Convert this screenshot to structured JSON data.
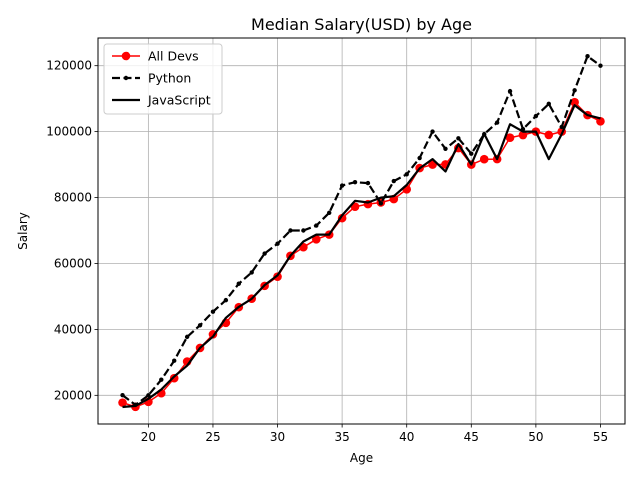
{
  "chart_data": {
    "type": "line",
    "title": "Median Salary(USD) by Age",
    "xlabel": "Age",
    "ylabel": "Salary",
    "xlim": [
      16.1,
      56.9
    ],
    "ylim": [
      11300,
      128400
    ],
    "xticks": [
      20,
      25,
      30,
      35,
      40,
      45,
      50,
      55
    ],
    "yticks": [
      20000,
      40000,
      60000,
      80000,
      100000,
      120000
    ],
    "grid": true,
    "legend_position": "top-left",
    "x": [
      18,
      19,
      20,
      21,
      22,
      23,
      24,
      25,
      26,
      27,
      28,
      29,
      30,
      31,
      32,
      33,
      34,
      35,
      36,
      37,
      38,
      39,
      40,
      41,
      42,
      43,
      44,
      45,
      46,
      47,
      48,
      49,
      50,
      51,
      52,
      53,
      54,
      55
    ],
    "series": [
      {
        "name": "All Devs",
        "color": "#ff0000",
        "style": "solid-marker",
        "values": [
          17784,
          16500,
          18012,
          20628,
          25206,
          30252,
          34368,
          38496,
          42000,
          46752,
          49320,
          53200,
          56000,
          62316,
          64928,
          67317,
          68748,
          73752,
          77232,
          78000,
          78508,
          79536,
          82488,
          88935,
          90000,
          90056,
          95000,
          90000,
          91633,
          91660,
          98150,
          98964,
          100000,
          98988,
          100000,
          108923,
          105000,
          103117
        ]
      },
      {
        "name": "Python",
        "color": "#000000",
        "style": "dashed-dot",
        "values": [
          20046,
          17100,
          20000,
          24744,
          30500,
          37732,
          41247,
          45372,
          48876,
          53850,
          57287,
          63016,
          65998,
          70003,
          70000,
          71496,
          75370,
          83640,
          84666,
          84392,
          78254,
          85000,
          87038,
          91991,
          100000,
          94796,
          97962,
          93302,
          99240,
          102736,
          112285,
          100771,
          104708,
          108423,
          101407,
          112542,
          122870,
          120000
        ]
      },
      {
        "name": "JavaScript",
        "color": "#000000",
        "style": "solid",
        "values": [
          16446,
          16791,
          18942,
          21780,
          25704,
          29000,
          34372,
          37810,
          43515,
          46823,
          49293,
          53437,
          56373,
          62375,
          66674,
          68745,
          68746,
          74583,
          79000,
          78508,
          79996,
          80403,
          83820,
          88833,
          91660,
          87892,
          96243,
          90000,
          99313,
          91660,
          102264,
          100000,
          100000,
          91660,
          99240,
          108000,
          105000,
          104000
        ]
      }
    ]
  }
}
